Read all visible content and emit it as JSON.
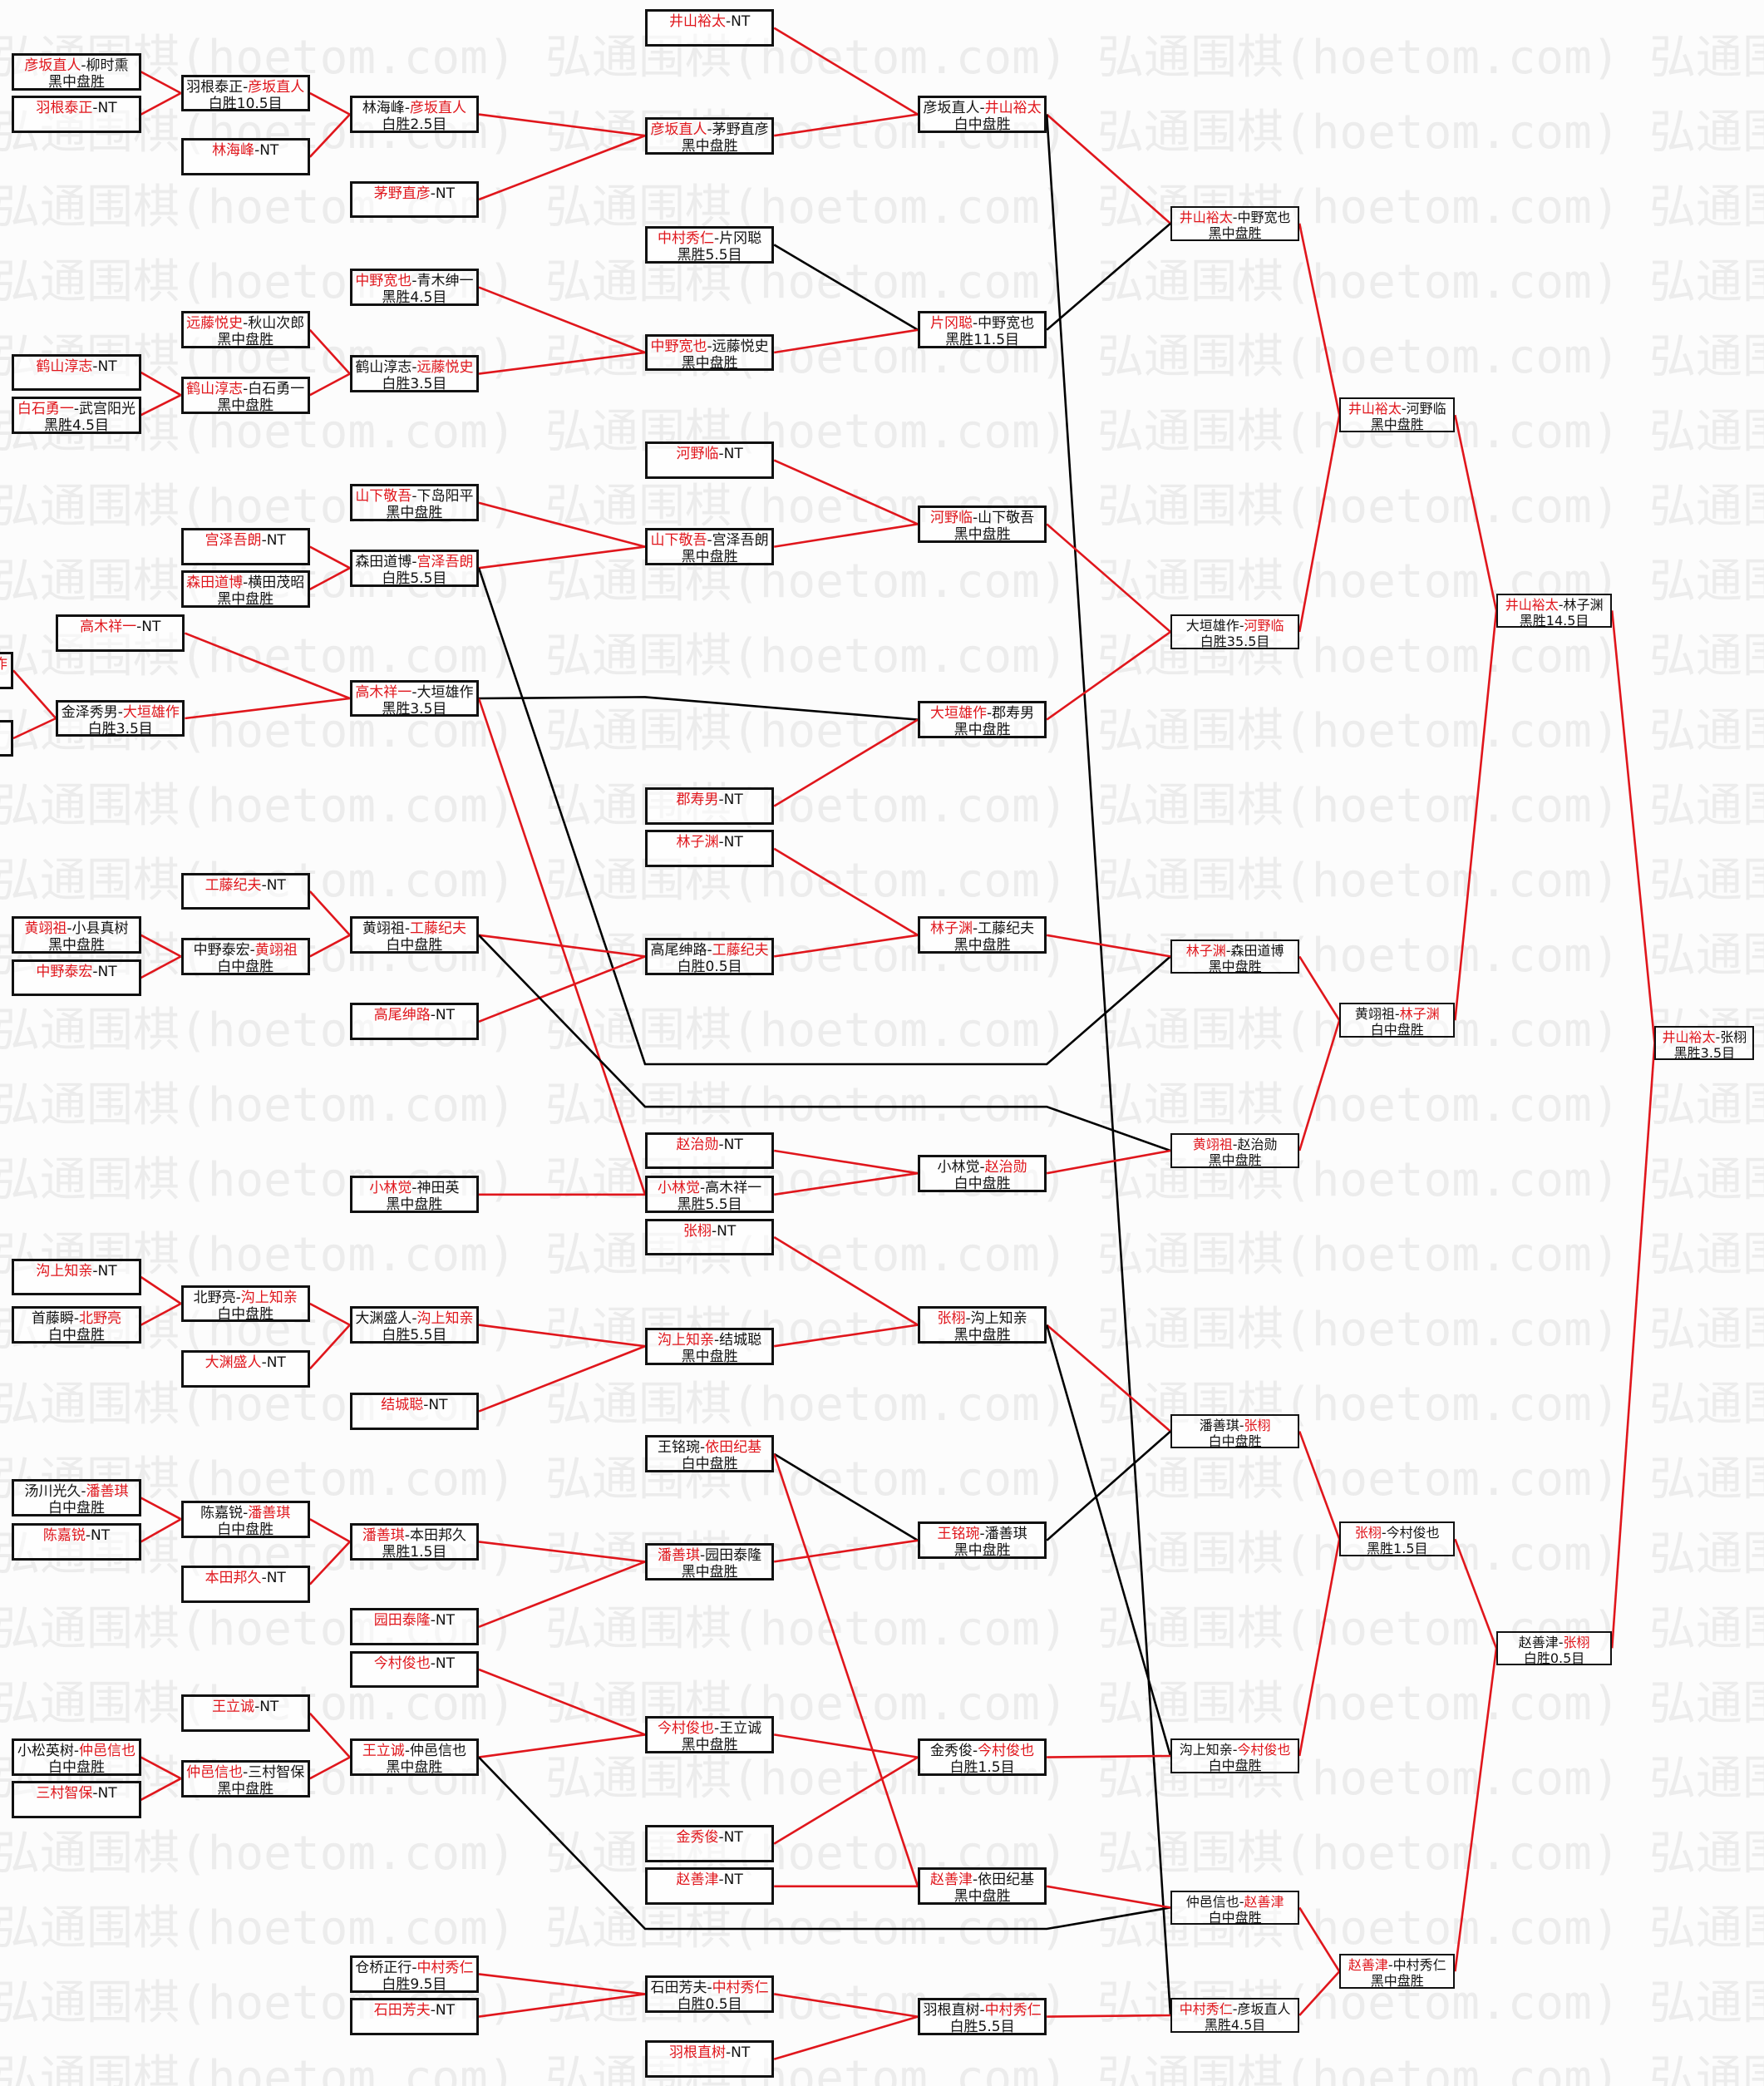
{
  "watermark": "弘通围棋(hoetom.com)",
  "sep": "-",
  "colors": {
    "winner_text": "#e0161c",
    "winner_line": "#e0161c",
    "loser_line": "#000000",
    "box_border": "#111111"
  },
  "matches": [
    {
      "id": "a1",
      "p1": "彦坂直人",
      "p2": "柳时熏",
      "result": "黑中盘胜",
      "winner": 1
    },
    {
      "id": "a2",
      "p1": "羽根泰正",
      "p2": "NT",
      "result": "",
      "winner": 1
    },
    {
      "id": "a3",
      "p1": "鹤山淳志",
      "p2": "NT",
      "result": "",
      "winner": 1
    },
    {
      "id": "a4",
      "p1": "白石勇一",
      "p2": "武宫阳光",
      "result": "黑胜4.5目",
      "winner": 1
    },
    {
      "id": "a5",
      "partial": "作"
    },
    {
      "id": "a6",
      "partial": ""
    },
    {
      "id": "a7",
      "p1": "黄翊祖",
      "p2": "小县真树",
      "result": "黑中盘胜",
      "winner": 1
    },
    {
      "id": "a8",
      "p1": "中野泰宏",
      "p2": "NT",
      "result": "",
      "winner": 1
    },
    {
      "id": "a9",
      "p1": "沟上知亲",
      "p2": "NT",
      "result": "",
      "winner": 1
    },
    {
      "id": "a10",
      "p1": "首藤瞬",
      "p2": "北野亮",
      "result": "白中盘胜",
      "winner": 2
    },
    {
      "id": "a11",
      "p1": "汤川光久",
      "p2": "潘善琪",
      "result": "白中盘胜",
      "winner": 2
    },
    {
      "id": "a12",
      "p1": "陈嘉锐",
      "p2": "NT",
      "result": "",
      "winner": 1
    },
    {
      "id": "a13",
      "p1": "小松英树",
      "p2": "仲邑信也",
      "result": "白中盘胜",
      "winner": 2
    },
    {
      "id": "a14",
      "p1": "三村智保",
      "p2": "NT",
      "result": "",
      "winner": 1
    },
    {
      "id": "b1",
      "p1": "羽根泰正",
      "p2": "彦坂直人",
      "result": "白胜10.5目",
      "winner": 2
    },
    {
      "id": "b2",
      "p1": "林海峰",
      "p2": "NT",
      "result": "",
      "winner": 1
    },
    {
      "id": "b3",
      "p1": "远藤悦史",
      "p2": "秋山次郎",
      "result": "黑中盘胜",
      "winner": 1
    },
    {
      "id": "b4",
      "p1": "鹤山淳志",
      "p2": "白石勇一",
      "result": "黑中盘胜",
      "winner": 1
    },
    {
      "id": "b5",
      "p1": "宫泽吾朗",
      "p2": "NT",
      "result": "",
      "winner": 1
    },
    {
      "id": "b6",
      "p1": "森田道博",
      "p2": "横田茂昭",
      "result": "黑中盘胜",
      "winner": 1
    },
    {
      "id": "b7",
      "p1": "高木祥一",
      "p2": "NT",
      "result": "",
      "winner": 1
    },
    {
      "id": "b8",
      "p1": "金泽秀男",
      "p2": "大垣雄作",
      "result": "白胜3.5目",
      "winner": 2
    },
    {
      "id": "b9",
      "p1": "工藤纪夫",
      "p2": "NT",
      "result": "",
      "winner": 1
    },
    {
      "id": "b10",
      "p1": "中野泰宏",
      "p2": "黄翊祖",
      "result": "白中盘胜",
      "winner": 2
    },
    {
      "id": "b11",
      "p1": "北野亮",
      "p2": "沟上知亲",
      "result": "白中盘胜",
      "winner": 2
    },
    {
      "id": "b12",
      "p1": "大渊盛人",
      "p2": "NT",
      "result": "",
      "winner": 1
    },
    {
      "id": "b13",
      "p1": "陈嘉锐",
      "p2": "潘善琪",
      "result": "白中盘胜",
      "winner": 2
    },
    {
      "id": "b14",
      "p1": "本田邦久",
      "p2": "NT",
      "result": "",
      "winner": 1
    },
    {
      "id": "b15",
      "p1": "王立诚",
      "p2": "NT",
      "result": "",
      "winner": 1
    },
    {
      "id": "b16",
      "p1": "仲邑信也",
      "p2": "三村智保",
      "result": "黑中盘胜",
      "winner": 1
    },
    {
      "id": "c1",
      "p1": "林海峰",
      "p2": "彦坂直人",
      "result": "白胜2.5目",
      "winner": 2
    },
    {
      "id": "c2",
      "p1": "茅野直彦",
      "p2": "NT",
      "result": "",
      "winner": 1
    },
    {
      "id": "c3",
      "p1": "中野宽也",
      "p2": "青木绅一",
      "result": "黑胜4.5目",
      "winner": 1
    },
    {
      "id": "c4",
      "p1": "鹤山淳志",
      "p2": "远藤悦史",
      "result": "白胜3.5目",
      "winner": 2
    },
    {
      "id": "c5",
      "p1": "山下敬吾",
      "p2": "下岛阳平",
      "result": "黑中盘胜",
      "winner": 1
    },
    {
      "id": "c6",
      "p1": "森田道博",
      "p2": "宫泽吾朗",
      "result": "白胜5.5目",
      "winner": 2
    },
    {
      "id": "c7",
      "p1": "高木祥一",
      "p2": "大垣雄作",
      "result": "黑胜3.5目",
      "winner": 1
    },
    {
      "id": "c8",
      "p1": "黄翊祖",
      "p2": "工藤纪夫",
      "result": "白中盘胜",
      "winner": 2
    },
    {
      "id": "c9",
      "p1": "高尾绅路",
      "p2": "NT",
      "result": "",
      "winner": 1
    },
    {
      "id": "c10",
      "p1": "小林觉",
      "p2": "神田英",
      "result": "黑中盘胜",
      "winner": 1
    },
    {
      "id": "c11",
      "p1": "大渊盛人",
      "p2": "沟上知亲",
      "result": "白胜5.5目",
      "winner": 2
    },
    {
      "id": "c12",
      "p1": "结城聪",
      "p2": "NT",
      "result": "",
      "winner": 1
    },
    {
      "id": "c13",
      "p1": "潘善琪",
      "p2": "本田邦久",
      "result": "黑胜1.5目",
      "winner": 1
    },
    {
      "id": "c14",
      "p1": "园田泰隆",
      "p2": "NT",
      "result": "",
      "winner": 1
    },
    {
      "id": "c15",
      "p1": "今村俊也",
      "p2": "NT",
      "result": "",
      "winner": 1
    },
    {
      "id": "c16",
      "p1": "王立诚",
      "p2": "仲邑信也",
      "result": "黑中盘胜",
      "winner": 1
    },
    {
      "id": "c17",
      "p1": "仓桥正行",
      "p2": "中村秀仁",
      "result": "白胜9.5目",
      "winner": 2
    },
    {
      "id": "c18",
      "p1": "石田芳夫",
      "p2": "NT",
      "result": "",
      "winner": 1
    },
    {
      "id": "d1",
      "p1": "井山裕太",
      "p2": "NT",
      "result": "",
      "winner": 1
    },
    {
      "id": "d2",
      "p1": "彦坂直人",
      "p2": "茅野直彦",
      "result": "黑中盘胜",
      "winner": 1
    },
    {
      "id": "d3",
      "p1": "中村秀仁",
      "p2": "片冈聪",
      "result": "黑胜5.5目",
      "winner": 1
    },
    {
      "id": "d4",
      "p1": "中野宽也",
      "p2": "远藤悦史",
      "result": "黑中盘胜",
      "winner": 1
    },
    {
      "id": "d5",
      "p1": "河野临",
      "p2": "NT",
      "result": "",
      "winner": 1
    },
    {
      "id": "d6",
      "p1": "山下敬吾",
      "p2": "宫泽吾朗",
      "result": "黑中盘胜",
      "winner": 1
    },
    {
      "id": "d7",
      "p1": "郡寿男",
      "p2": "NT",
      "result": "",
      "winner": 1
    },
    {
      "id": "d8",
      "p1": "林子渊",
      "p2": "NT",
      "result": "",
      "winner": 1
    },
    {
      "id": "d9",
      "p1": "高尾绅路",
      "p2": "工藤纪夫",
      "result": "白胜0.5目",
      "winner": 2
    },
    {
      "id": "d10",
      "p1": "赵治勋",
      "p2": "NT",
      "result": "",
      "winner": 1
    },
    {
      "id": "d11",
      "p1": "小林觉",
      "p2": "高木祥一",
      "result": "黑胜5.5目",
      "winner": 1
    },
    {
      "id": "d12",
      "p1": "张栩",
      "p2": "NT",
      "result": "",
      "winner": 1
    },
    {
      "id": "d13",
      "p1": "沟上知亲",
      "p2": "结城聪",
      "result": "黑中盘胜",
      "winner": 1
    },
    {
      "id": "d14",
      "p1": "王铭琬",
      "p2": "依田纪基",
      "result": "白中盘胜",
      "winner": 2
    },
    {
      "id": "d15",
      "p1": "潘善琪",
      "p2": "园田泰隆",
      "result": "黑中盘胜",
      "winner": 1
    },
    {
      "id": "d16",
      "p1": "今村俊也",
      "p2": "王立诚",
      "result": "黑中盘胜",
      "winner": 1
    },
    {
      "id": "d17",
      "p1": "金秀俊",
      "p2": "NT",
      "result": "",
      "winner": 1
    },
    {
      "id": "d18",
      "p1": "赵善津",
      "p2": "NT",
      "result": "",
      "winner": 1
    },
    {
      "id": "d19",
      "p1": "石田芳夫",
      "p2": "中村秀仁",
      "result": "白胜0.5目",
      "winner": 2
    },
    {
      "id": "d20",
      "p1": "羽根直树",
      "p2": "NT",
      "result": "",
      "winner": 1
    },
    {
      "id": "e1",
      "p1": "彦坂直人",
      "p2": "井山裕太",
      "result": "白中盘胜",
      "winner": 2
    },
    {
      "id": "e2",
      "p1": "片冈聪",
      "p2": "中野宽也",
      "result": "黑胜11.5目",
      "winner": 1
    },
    {
      "id": "e3",
      "p1": "河野临",
      "p2": "山下敬吾",
      "result": "黑中盘胜",
      "winner": 1
    },
    {
      "id": "e4",
      "p1": "大垣雄作",
      "p2": "郡寿男",
      "result": "黑中盘胜",
      "winner": 1
    },
    {
      "id": "e5",
      "p1": "林子渊",
      "p2": "工藤纪夫",
      "result": "黑中盘胜",
      "winner": 1
    },
    {
      "id": "e6",
      "p1": "小林觉",
      "p2": "赵治勋",
      "result": "白中盘胜",
      "winner": 2
    },
    {
      "id": "e7",
      "p1": "张栩",
      "p2": "沟上知亲",
      "result": "黑中盘胜",
      "winner": 1
    },
    {
      "id": "e8",
      "p1": "王铭琬",
      "p2": "潘善琪",
      "result": "黑中盘胜",
      "winner": 1
    },
    {
      "id": "e9",
      "p1": "金秀俊",
      "p2": "今村俊也",
      "result": "白胜1.5目",
      "winner": 2
    },
    {
      "id": "e10",
      "p1": "赵善津",
      "p2": "依田纪基",
      "result": "黑中盘胜",
      "winner": 1
    },
    {
      "id": "e11",
      "p1": "羽根直树",
      "p2": "中村秀仁",
      "result": "白胜5.5目",
      "winner": 2
    },
    {
      "id": "f1",
      "p1": "井山裕太",
      "p2": "中野宽也",
      "result": "黑中盘胜",
      "winner": 1
    },
    {
      "id": "f2",
      "p1": "大垣雄作",
      "p2": "河野临",
      "result": "白胜35.5目",
      "winner": 2
    },
    {
      "id": "f3",
      "p1": "林子渊",
      "p2": "森田道博",
      "result": "黑中盘胜",
      "winner": 1
    },
    {
      "id": "f4",
      "p1": "黄翊祖",
      "p2": "赵治勋",
      "result": "黑中盘胜",
      "winner": 1
    },
    {
      "id": "f5",
      "p1": "潘善琪",
      "p2": "张栩",
      "result": "白中盘胜",
      "winner": 2
    },
    {
      "id": "f6",
      "p1": "沟上知亲",
      "p2": "今村俊也",
      "result": "白中盘胜",
      "winner": 2
    },
    {
      "id": "f7",
      "p1": "仲邑信也",
      "p2": "赵善津",
      "result": "白中盘胜",
      "winner": 2
    },
    {
      "id": "f8",
      "p1": "中村秀仁",
      "p2": "彦坂直人",
      "result": "黑胜4.5目",
      "winner": 1
    },
    {
      "id": "g1",
      "p1": "井山裕太",
      "p2": "河野临",
      "result": "黑中盘胜",
      "winner": 1
    },
    {
      "id": "g2",
      "p1": "黄翊祖",
      "p2": "林子渊",
      "result": "白中盘胜",
      "winner": 2
    },
    {
      "id": "g3",
      "p1": "张栩",
      "p2": "今村俊也",
      "result": "黑胜1.5目",
      "winner": 1
    },
    {
      "id": "g4",
      "p1": "赵善津",
      "p2": "中村秀仁",
      "result": "黑中盘胜",
      "winner": 1
    },
    {
      "id": "h1",
      "p1": "井山裕太",
      "p2": "林子渊",
      "result": "黑胜14.5目",
      "winner": 1
    },
    {
      "id": "h2",
      "p1": "赵善津",
      "p2": "张栩",
      "result": "白胜0.5目",
      "winner": 2
    },
    {
      "id": "i1",
      "p1": "井山裕太",
      "p2": "张栩",
      "result": "黑胜3.5目",
      "winner": 1
    }
  ],
  "connections": [
    [
      "a1",
      "b1",
      "red"
    ],
    [
      "a2",
      "b1",
      "red"
    ],
    [
      "a3",
      "b4",
      "red"
    ],
    [
      "a4",
      "b4",
      "red"
    ],
    [
      "a5",
      "b8",
      "red"
    ],
    [
      "a6",
      "b8",
      "red"
    ],
    [
      "a7",
      "b10",
      "red"
    ],
    [
      "a8",
      "b10",
      "red"
    ],
    [
      "a9",
      "b11",
      "red"
    ],
    [
      "a10",
      "b11",
      "red"
    ],
    [
      "a11",
      "b13",
      "red"
    ],
    [
      "a12",
      "b13",
      "red"
    ],
    [
      "a13",
      "b16",
      "red"
    ],
    [
      "a14",
      "b16",
      "red"
    ],
    [
      "b1",
      "c1",
      "red"
    ],
    [
      "b2",
      "c1",
      "red"
    ],
    [
      "b3",
      "c4",
      "red"
    ],
    [
      "b4",
      "c4",
      "red"
    ],
    [
      "b5",
      "c6",
      "red"
    ],
    [
      "b6",
      "c6",
      "red"
    ],
    [
      "b7",
      "c7",
      "red"
    ],
    [
      "b8",
      "c7",
      "red"
    ],
    [
      "b9",
      "c8",
      "red"
    ],
    [
      "b10",
      "c8",
      "red"
    ],
    [
      "b11",
      "c11",
      "red"
    ],
    [
      "b12",
      "c11",
      "red"
    ],
    [
      "b13",
      "c13",
      "red"
    ],
    [
      "b14",
      "c13",
      "red"
    ],
    [
      "b15",
      "c16",
      "red"
    ],
    [
      "b16",
      "c16",
      "red"
    ],
    [
      "c1",
      "d2",
      "red"
    ],
    [
      "c2",
      "d2",
      "red"
    ],
    [
      "c3",
      "d4",
      "red"
    ],
    [
      "c4",
      "d4",
      "red"
    ],
    [
      "c5",
      "d6",
      "red"
    ],
    [
      "c6",
      "d6",
      "red"
    ],
    [
      "c6",
      "f3",
      "black"
    ],
    [
      "c7",
      "e4",
      "black"
    ],
    [
      "c7",
      "d11",
      "red"
    ],
    [
      "c8",
      "d9",
      "red"
    ],
    [
      "c9",
      "d9",
      "red"
    ],
    [
      "c8",
      "f4",
      "black"
    ],
    [
      "c10",
      "d11",
      "red"
    ],
    [
      "c11",
      "d13",
      "red"
    ],
    [
      "c12",
      "d13",
      "red"
    ],
    [
      "c13",
      "d15",
      "red"
    ],
    [
      "c14",
      "d15",
      "red"
    ],
    [
      "c15",
      "d16",
      "red"
    ],
    [
      "c16",
      "d16",
      "red"
    ],
    [
      "c16",
      "f7",
      "black"
    ],
    [
      "c17",
      "d19",
      "red"
    ],
    [
      "c18",
      "d19",
      "red"
    ],
    [
      "d1",
      "e1",
      "red"
    ],
    [
      "d2",
      "e1",
      "red"
    ],
    [
      "d3",
      "e2",
      "black"
    ],
    [
      "d4",
      "e2",
      "red"
    ],
    [
      "d5",
      "e3",
      "red"
    ],
    [
      "d6",
      "e3",
      "red"
    ],
    [
      "d7",
      "e4",
      "red"
    ],
    [
      "d8",
      "e5",
      "red"
    ],
    [
      "d9",
      "e5",
      "red"
    ],
    [
      "d10",
      "e6",
      "red"
    ],
    [
      "d11",
      "e6",
      "red"
    ],
    [
      "d12",
      "e7",
      "red"
    ],
    [
      "d13",
      "e7",
      "red"
    ],
    [
      "d14",
      "e8",
      "black"
    ],
    [
      "d14",
      "e10",
      "red"
    ],
    [
      "d15",
      "e8",
      "red"
    ],
    [
      "d16",
      "e9",
      "red"
    ],
    [
      "d17",
      "e9",
      "red"
    ],
    [
      "d18",
      "e10",
      "red"
    ],
    [
      "d19",
      "e11",
      "red"
    ],
    [
      "d20",
      "e11",
      "red"
    ],
    [
      "e1",
      "f1",
      "red"
    ],
    [
      "e1",
      "f8",
      "black"
    ],
    [
      "e2",
      "f1",
      "black"
    ],
    [
      "e3",
      "f2",
      "red"
    ],
    [
      "e4",
      "f2",
      "red"
    ],
    [
      "e5",
      "f3",
      "red"
    ],
    [
      "e6",
      "f4",
      "red"
    ],
    [
      "e7",
      "f5",
      "red"
    ],
    [
      "e7",
      "f6",
      "black"
    ],
    [
      "e8",
      "f5",
      "black"
    ],
    [
      "e9",
      "f6",
      "red"
    ],
    [
      "e10",
      "f7",
      "red"
    ],
    [
      "e11",
      "f8",
      "red"
    ],
    [
      "f1",
      "g1",
      "red"
    ],
    [
      "f2",
      "g1",
      "red"
    ],
    [
      "f3",
      "g2",
      "red"
    ],
    [
      "f4",
      "g2",
      "red"
    ],
    [
      "f5",
      "g3",
      "red"
    ],
    [
      "f6",
      "g3",
      "red"
    ],
    [
      "f7",
      "g4",
      "red"
    ],
    [
      "f8",
      "g4",
      "red"
    ],
    [
      "g1",
      "h1",
      "red"
    ],
    [
      "g2",
      "h1",
      "red"
    ],
    [
      "g3",
      "h2",
      "red"
    ],
    [
      "g4",
      "h2",
      "red"
    ],
    [
      "h1",
      "i1",
      "red"
    ],
    [
      "h2",
      "i1",
      "red"
    ]
  ]
}
